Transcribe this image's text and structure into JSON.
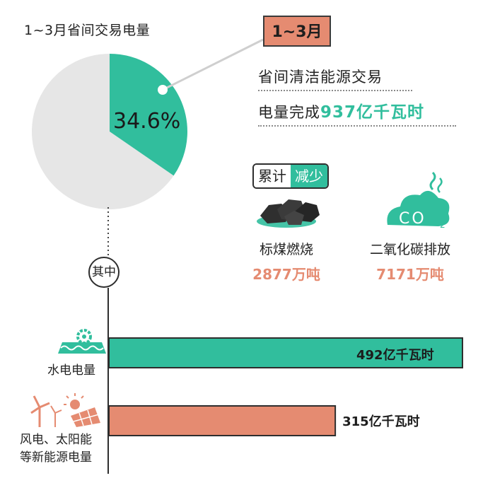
{
  "pie": {
    "title": "1~3月省间交易电量",
    "percent_label": "34.6%",
    "colors": {
      "slice": "#31be9d",
      "rest": "#e6e6e6"
    }
  },
  "badge": {
    "label": "1~3月",
    "color": "#e58b71"
  },
  "headline": {
    "line1": "省间清洁能源交易",
    "line2_prefix": "电量完成",
    "line2_value": "937亿千瓦时"
  },
  "tag": {
    "left": "累计",
    "right": "减少"
  },
  "savings": [
    {
      "label": "标煤燃烧",
      "value": "2877万吨",
      "icon": "coal-icon"
    },
    {
      "label": "二氧化碳排放",
      "value": "7171万吨",
      "icon": "co2-cloud-icon",
      "icon_text": "CO",
      "icon_sub": "2"
    }
  ],
  "divider_label": "其中",
  "bars": [
    {
      "label_lines": [
        "水电电量"
      ],
      "value_label": "492亿千瓦时",
      "icon": "hydropower-icon"
    },
    {
      "label_lines": [
        "风电、太阳能",
        "等新能源电量"
      ],
      "value_label": "315亿千瓦时",
      "icon": "wind-solar-icon"
    }
  ],
  "chart_data": [
    {
      "type": "pie",
      "title": "1~3月省间交易电量",
      "slices": [
        {
          "label": "省间清洁能源交易",
          "value": 34.6
        },
        {
          "label": "",
          "value": 65.4
        }
      ],
      "unit": "%"
    },
    {
      "type": "bar",
      "orientation": "horizontal",
      "categories": [
        "水电电量",
        "风电、太阳能等新能源电量"
      ],
      "values": [
        492,
        315
      ],
      "value_labels": [
        "492亿千瓦时",
        "315亿千瓦时"
      ],
      "unit": "亿千瓦时",
      "colors": [
        "#31be9d",
        "#e58b71"
      ]
    }
  ]
}
